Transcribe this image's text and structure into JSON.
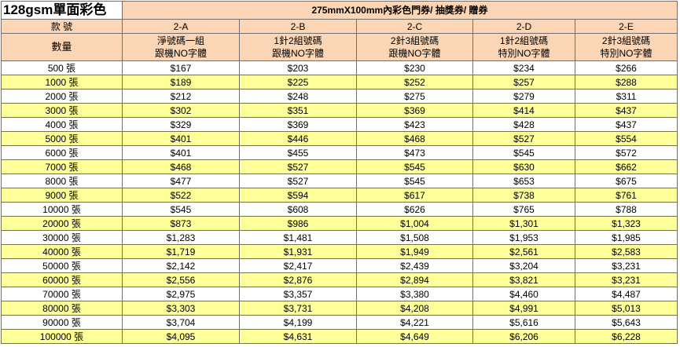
{
  "title": "128gsm單面彩色",
  "banner": "275mmX100mm內彩色門券/ 抽獎券/ 贈券",
  "header": {
    "code_label": "款 號",
    "qty_label": "數量",
    "columns": [
      {
        "code": "2-A",
        "desc1": "淨號碼一組",
        "desc2": "跟機NO字體"
      },
      {
        "code": "2-B",
        "desc1": "1針2組號碼",
        "desc2": "跟機NO字體"
      },
      {
        "code": "2-C",
        "desc1": "2針3組號碼",
        "desc2": "跟機NO字體"
      },
      {
        "code": "2-D",
        "desc1": "1針2組號碼",
        "desc2": "特別NO字體"
      },
      {
        "code": "2-E",
        "desc1": "2針3組號碼",
        "desc2": "特別NO字體"
      }
    ]
  },
  "rows": [
    {
      "qty": "500 張",
      "prices": [
        "$167",
        "$203",
        "$230",
        "$234",
        "$266"
      ]
    },
    {
      "qty": "1000 張",
      "prices": [
        "$189",
        "$225",
        "$252",
        "$257",
        "$288"
      ]
    },
    {
      "qty": "2000 張",
      "prices": [
        "$212",
        "$248",
        "$275",
        "$279",
        "$311"
      ]
    },
    {
      "qty": "3000 張",
      "prices": [
        "$302",
        "$351",
        "$369",
        "$414",
        "$437"
      ]
    },
    {
      "qty": "4000 張",
      "prices": [
        "$329",
        "$369",
        "$423",
        "$428",
        "$437"
      ]
    },
    {
      "qty": "5000 張",
      "prices": [
        "$401",
        "$446",
        "$468",
        "$527",
        "$554"
      ]
    },
    {
      "qty": "6000 張",
      "prices": [
        "$401",
        "$455",
        "$473",
        "$545",
        "$572"
      ]
    },
    {
      "qty": "7000 張",
      "prices": [
        "$468",
        "$527",
        "$545",
        "$630",
        "$662"
      ]
    },
    {
      "qty": "8000 張",
      "prices": [
        "$477",
        "$527",
        "$545",
        "$653",
        "$675"
      ]
    },
    {
      "qty": "9000 張",
      "prices": [
        "$522",
        "$594",
        "$617",
        "$738",
        "$761"
      ]
    },
    {
      "qty": "10000 張",
      "prices": [
        "$545",
        "$608",
        "$626",
        "$765",
        "$788"
      ]
    },
    {
      "qty": "20000 張",
      "prices": [
        "$873",
        "$986",
        "$1,004",
        "$1,301",
        "$1,323"
      ]
    },
    {
      "qty": "30000 張",
      "prices": [
        "$1,283",
        "$1,481",
        "$1,508",
        "$1,953",
        "$1,985"
      ]
    },
    {
      "qty": "40000 張",
      "prices": [
        "$1,719",
        "$1,931",
        "$1,949",
        "$2,561",
        "$2,583"
      ]
    },
    {
      "qty": "50000 張",
      "prices": [
        "$2,142",
        "$2,417",
        "$2,439",
        "$3,204",
        "$3,231"
      ]
    },
    {
      "qty": "60000 張",
      "prices": [
        "$2,556",
        "$2,876",
        "$2,894",
        "$3,821",
        "$3,231"
      ]
    },
    {
      "qty": "70000 張",
      "prices": [
        "$2,975",
        "$3,357",
        "$3,380",
        "$4,460",
        "$4,487"
      ]
    },
    {
      "qty": "80000 張",
      "prices": [
        "$3,303",
        "$3,731",
        "$4,208",
        "$4,991",
        "$5,013"
      ]
    },
    {
      "qty": "90000 張",
      "prices": [
        "$3,704",
        "$4,199",
        "$4,221",
        "$5,616",
        "$5,643"
      ]
    },
    {
      "qty": "100000 張",
      "prices": [
        "$4,095",
        "$4,631",
        "$4,649",
        "$6,206",
        "$6,228"
      ]
    }
  ],
  "colors": {
    "header_bg": "#fcd5b4",
    "stripe_bg": "#ffff99",
    "grid": "#6f6f6f"
  }
}
